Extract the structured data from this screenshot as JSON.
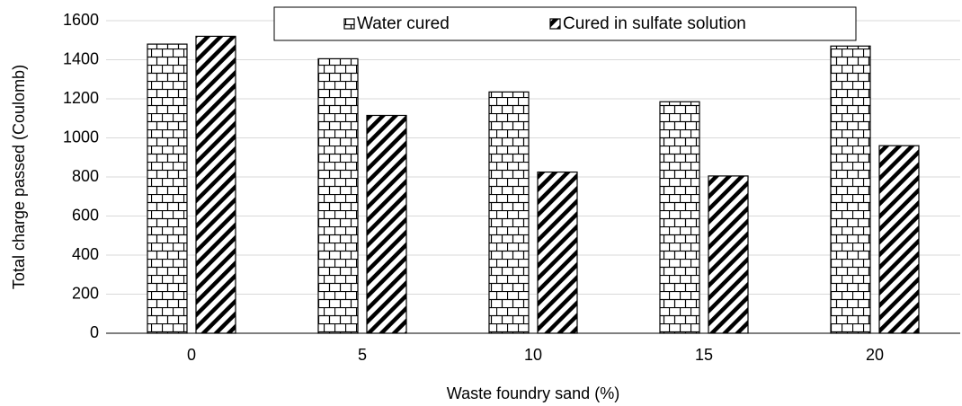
{
  "chart_data": {
    "type": "bar",
    "x_label": "Waste foundry sand (%)",
    "y_label": "Total charge passed (Coulomb)",
    "categories": [
      "0",
      "5",
      "10",
      "15",
      "20"
    ],
    "series": [
      {
        "name": "Water cured",
        "color": "#000000",
        "hatch": "brick",
        "values": [
          1480,
          1405,
          1235,
          1185,
          1470
        ]
      },
      {
        "name": "Cured in sulfate solution",
        "color": "#000000",
        "hatch": "diagonal",
        "values": [
          1520,
          1115,
          825,
          805,
          960
        ]
      }
    ],
    "ylim": [
      0,
      1600
    ],
    "yticks": [
      0,
      200,
      400,
      600,
      800,
      1000,
      1200,
      1400,
      1600
    ],
    "grid": true,
    "legend": "top"
  }
}
